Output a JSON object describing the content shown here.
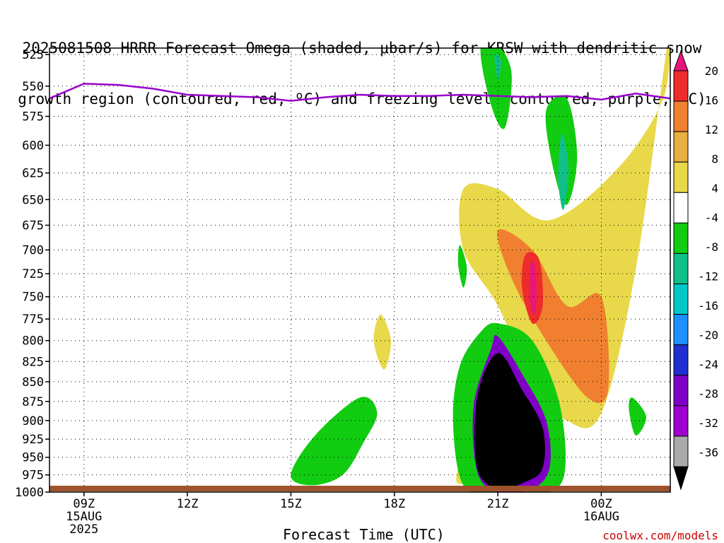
{
  "title": {
    "line1": "2025081508 HRRR Forecast Omega (shaded, μbar/s) for KRSW with dendritic snow",
    "line2": "growth region (contoured, red, ºC) and freezing level (contoured, purple, ºC)"
  },
  "footer": {
    "xlabel": "Forecast Time (UTC)",
    "credit": "coolwx.com/models"
  },
  "colors": {
    "freezing_level": "#9900cc",
    "ground": "#a0522d",
    "grid": "#000000"
  },
  "chart_data": {
    "type": "heatmap",
    "title": "2025081508 HRRR Forecast Omega (shaded, μbar/s) for KRSW with dendritic snow growth region (contoured, red, ºC) and freezing level (contoured, purple, ºC)",
    "xlabel": "Forecast Time (UTC)",
    "ylabel": "",
    "x_range_hours": [
      8,
      26
    ],
    "y_range_mb": [
      1000,
      520
    ],
    "y_scale": "log",
    "grid": "dotted",
    "x_ticks": [
      {
        "hour": 9,
        "label": [
          "09Z",
          "15AUG",
          "2025"
        ]
      },
      {
        "hour": 12,
        "label": [
          "12Z"
        ]
      },
      {
        "hour": 15,
        "label": [
          "15Z"
        ]
      },
      {
        "hour": 18,
        "label": [
          "18Z"
        ]
      },
      {
        "hour": 21,
        "label": [
          "21Z"
        ]
      },
      {
        "hour": 24,
        "label": [
          "00Z",
          "16AUG"
        ]
      }
    ],
    "y_ticks": [
      525,
      550,
      575,
      600,
      625,
      650,
      675,
      700,
      725,
      750,
      775,
      800,
      825,
      850,
      875,
      900,
      925,
      950,
      975,
      1000
    ],
    "colorbar": {
      "labels": [
        20,
        16,
        12,
        8,
        4,
        -4,
        -8,
        -12,
        -16,
        -20,
        -24,
        -28,
        -32,
        -36
      ],
      "colors": [
        "#e8157d",
        "#ee2c2c",
        "#f08030",
        "#e8b040",
        "#e8d84a",
        "#ffffff",
        "#11cc11",
        "#11c088",
        "#00c8c8",
        "#1e90ff",
        "#2030d0",
        "#8000c8",
        "#a000d0",
        "#aaaaaa",
        "#000000"
      ]
    },
    "freezing_level_line": {
      "hours": [
        8,
        9,
        10,
        11,
        12,
        13,
        14,
        15,
        16,
        17,
        18,
        19,
        20,
        21,
        22,
        23,
        24,
        25,
        26
      ],
      "pressure_mb": [
        560,
        548,
        549,
        552,
        557,
        558,
        559,
        562,
        559,
        557,
        558,
        558,
        557,
        558,
        559,
        558,
        561,
        556,
        560
      ]
    },
    "omega_regions": [
      {
        "level": -8,
        "color": "#11cc11",
        "hours": [
          20.5,
          21.0,
          21.4,
          21.2,
          20.8
        ],
        "pressure_mb": [
          521,
          518,
          540,
          585,
          565
        ]
      },
      {
        "level": -12,
        "color": "#11c088",
        "hours": [
          20.9,
          21.1,
          21.0
        ],
        "pressure_mb": [
          525,
          530,
          545
        ]
      },
      {
        "level": -8,
        "color": "#11cc11",
        "hours": [
          22.4,
          23.0,
          23.3,
          23.0,
          22.6
        ],
        "pressure_mb": [
          570,
          560,
          610,
          655,
          620
        ]
      },
      {
        "level": -12,
        "color": "#11c088",
        "hours": [
          22.85,
          23.05,
          22.9,
          22.75
        ],
        "pressure_mb": [
          590,
          620,
          660,
          630
        ]
      },
      {
        "level": -8,
        "color": "#11cc11",
        "hours": [
          19.9,
          20.1,
          20.0,
          19.85
        ],
        "pressure_mb": [
          695,
          718,
          740,
          715
        ]
      },
      {
        "level": 4,
        "color": "#e8d84a",
        "hours": [
          17.6,
          17.9,
          17.7,
          17.4
        ],
        "pressure_mb": [
          770,
          800,
          835,
          800
        ]
      },
      {
        "level": 4,
        "color": "#e8d84a",
        "hours": [
          19.9,
          20.1,
          19.8
        ],
        "pressure_mb": [
          960,
          985,
          985
        ]
      },
      {
        "level": -8,
        "color": "#11cc11",
        "hours": [
          24.9,
          25.3,
          25.0,
          24.8
        ],
        "pressure_mb": [
          870,
          895,
          920,
          885
        ]
      },
      {
        "level": -8,
        "color": "#11cc11",
        "hours": [
          15.7,
          17.0,
          17.5,
          17.1,
          16.5,
          15.6,
          15.0
        ],
        "pressure_mb": [
          920,
          870,
          890,
          930,
          975,
          990,
          975
        ]
      },
      {
        "level": 4,
        "color": "#e8d84a",
        "hours": [
          20.0,
          21.0,
          22.5,
          24.5,
          25.8,
          25.9,
          25.0,
          24.0,
          23.0,
          22.0,
          21.0,
          20.0
        ],
        "pressure_mb": [
          640,
          640,
          670,
          620,
          560,
          520,
          720,
          890,
          900,
          850,
          760,
          700
        ]
      },
      {
        "level": 12,
        "color": "#f08030",
        "hours": [
          21.0,
          22.0,
          23.0,
          24.0,
          24.2,
          23.6,
          22.4,
          21.4
        ],
        "pressure_mb": [
          680,
          700,
          760,
          750,
          860,
          870,
          800,
          730
        ]
      },
      {
        "level": 16,
        "color": "#ee2c2c",
        "hours": [
          21.8,
          22.2,
          22.3,
          22.0,
          21.7
        ],
        "pressure_mb": [
          705,
          710,
          760,
          780,
          740
        ]
      },
      {
        "level": 20,
        "color": "#e8157d",
        "hours": [
          21.95,
          22.1,
          22.1,
          21.95
        ],
        "pressure_mb": [
          715,
          720,
          765,
          760
        ]
      },
      {
        "level": -8,
        "color": "#11cc11",
        "hours": [
          20.5,
          21.0,
          22.0,
          22.8,
          22.9,
          22.0,
          21.0,
          20.0,
          19.7,
          19.9
        ],
        "pressure_mb": [
          790,
          780,
          800,
          880,
          980,
          1005,
          1005,
          990,
          900,
          830
        ]
      },
      {
        "level": -24,
        "color": "#8000c8",
        "hours": [
          20.8,
          21.0,
          21.7,
          22.4,
          22.5,
          22.0,
          21.0,
          20.4,
          20.3
        ],
        "pressure_mb": [
          810,
          795,
          840,
          900,
          965,
          995,
          1000,
          970,
          880
        ]
      },
      {
        "level": -36,
        "color": "#000000",
        "hours": [
          21.0,
          21.7,
          22.3,
          22.3,
          21.8,
          21.0,
          20.4,
          20.4
        ],
        "pressure_mb": [
          815,
          860,
          910,
          965,
          985,
          995,
          965,
          870
        ]
      }
    ]
  }
}
